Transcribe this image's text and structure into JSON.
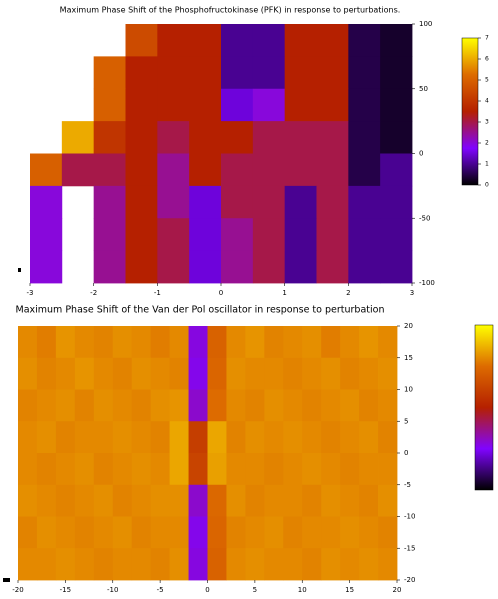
{
  "chart_data": [
    {
      "type": "heatmap",
      "title": "Maximum Phase Shift of the Phosphofructokinase (PFK) in response to perturbations.",
      "xlim": [
        -3,
        3
      ],
      "xticks": [
        -3,
        -2,
        -1,
        0,
        1,
        2,
        3
      ],
      "ylim": [
        -100,
        100
      ],
      "yticks": [
        100,
        50,
        0,
        -50,
        -100
      ],
      "zlim": [
        0,
        7
      ],
      "cbticks": [
        7,
        6,
        5,
        4,
        3,
        2,
        1,
        0
      ],
      "colors": [
        "#000000",
        "#8004ff",
        "#b52000",
        "#dd6b00",
        "#ffff00"
      ],
      "z": [
        [
          null,
          null,
          null,
          4.5,
          3.5,
          3.5,
          1.0,
          1.0,
          3.5,
          3.5,
          0.5,
          0.3
        ],
        [
          null,
          null,
          5,
          3.5,
          3.5,
          3.5,
          1.0,
          1.0,
          3.5,
          3.5,
          0.5,
          0.3
        ],
        [
          null,
          null,
          5,
          3.5,
          3.5,
          3.5,
          1.5,
          2.0,
          3.5,
          3.5,
          0.5,
          0.3
        ],
        [
          null,
          6,
          4,
          3.5,
          3.0,
          3.5,
          3.5,
          3.0,
          3.0,
          3.0,
          0.5,
          0.3
        ],
        [
          5,
          3,
          3,
          3.5,
          2.5,
          3.5,
          3.0,
          3.0,
          3.0,
          3.0,
          0.5,
          1.0
        ],
        [
          2,
          null,
          2.5,
          3.5,
          2.5,
          1.5,
          3.0,
          3.0,
          1.0,
          3.0,
          1.0,
          1.0
        ],
        [
          2,
          null,
          2.5,
          3.5,
          3.0,
          1.5,
          2.5,
          3.0,
          1.0,
          3.0,
          1.0,
          1.0
        ],
        [
          2,
          null,
          2.5,
          3.5,
          3.0,
          1.5,
          2.5,
          3.0,
          1.0,
          3.0,
          1.0,
          1.0
        ]
      ]
    },
    {
      "type": "heatmap",
      "title": "Maximum Phase Shift of the Van der Pol oscillator in response to perturbation",
      "xlim": [
        -20,
        20
      ],
      "xticks": [
        -20,
        -15,
        -10,
        -5,
        0,
        5,
        10,
        15,
        20
      ],
      "ylim": [
        -20,
        20
      ],
      "yticks": [
        20,
        15,
        10,
        5,
        0,
        -5,
        -10,
        -15,
        -20
      ],
      "zlim": [
        0,
        1
      ],
      "colors": [
        "#000000",
        "#8004ff",
        "#b52000",
        "#dd6b00",
        "#ffff00"
      ],
      "z": [
        [
          0.8,
          0.78,
          0.82,
          0.8,
          0.79,
          0.81,
          0.8,
          0.78,
          0.8,
          0.28,
          0.72,
          0.8,
          0.82,
          0.79,
          0.8,
          0.81,
          0.78,
          0.8,
          0.82,
          0.8
        ],
        [
          0.81,
          0.79,
          0.8,
          0.82,
          0.8,
          0.79,
          0.81,
          0.8,
          0.79,
          0.27,
          0.73,
          0.81,
          0.8,
          0.8,
          0.79,
          0.8,
          0.81,
          0.79,
          0.8,
          0.81
        ],
        [
          0.79,
          0.8,
          0.81,
          0.79,
          0.81,
          0.8,
          0.79,
          0.81,
          0.82,
          0.3,
          0.75,
          0.8,
          0.79,
          0.81,
          0.8,
          0.79,
          0.8,
          0.81,
          0.79,
          0.8
        ],
        [
          0.8,
          0.81,
          0.79,
          0.8,
          0.8,
          0.81,
          0.8,
          0.79,
          0.85,
          0.6,
          0.85,
          0.79,
          0.81,
          0.8,
          0.81,
          0.8,
          0.79,
          0.8,
          0.81,
          0.79
        ],
        [
          0.8,
          0.79,
          0.8,
          0.81,
          0.79,
          0.8,
          0.81,
          0.8,
          0.85,
          0.62,
          0.84,
          0.8,
          0.8,
          0.79,
          0.8,
          0.81,
          0.8,
          0.79,
          0.8,
          0.8
        ],
        [
          0.81,
          0.8,
          0.79,
          0.8,
          0.81,
          0.79,
          0.8,
          0.81,
          0.81,
          0.3,
          0.74,
          0.81,
          0.79,
          0.8,
          0.8,
          0.79,
          0.81,
          0.8,
          0.79,
          0.81
        ],
        [
          0.79,
          0.81,
          0.8,
          0.79,
          0.8,
          0.81,
          0.79,
          0.8,
          0.8,
          0.27,
          0.73,
          0.79,
          0.8,
          0.81,
          0.79,
          0.8,
          0.8,
          0.81,
          0.8,
          0.79
        ],
        [
          0.8,
          0.8,
          0.81,
          0.8,
          0.79,
          0.8,
          0.8,
          0.79,
          0.81,
          0.28,
          0.72,
          0.8,
          0.81,
          0.8,
          0.8,
          0.79,
          0.81,
          0.8,
          0.81,
          0.8
        ]
      ]
    }
  ]
}
